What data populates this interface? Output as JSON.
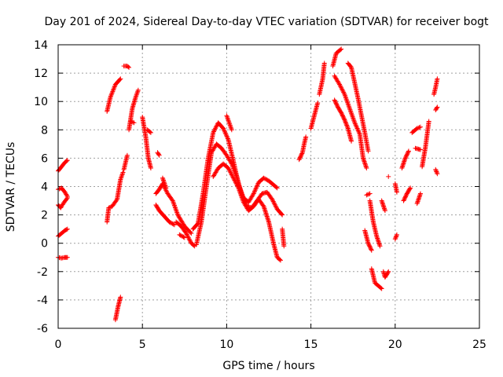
{
  "chart_data": {
    "type": "scatter",
    "title": "Day 201 of 2024, Sidereal Day-to-day VTEC variation (SDTVAR) for receiver bogt",
    "xlabel": "GPS time / hours",
    "ylabel": "SDTVAR / TECUs",
    "xlim": [
      0,
      25
    ],
    "ylim": [
      -6,
      14
    ],
    "x_ticks": [
      0,
      5,
      10,
      15,
      20,
      25
    ],
    "y_ticks": [
      -6,
      -4,
      -2,
      0,
      2,
      4,
      6,
      8,
      10,
      12,
      14
    ],
    "grid": true,
    "marker": "+",
    "color": "#ff0000",
    "series": [
      {
        "name": "s01",
        "points": [
          [
            0,
            5.1
          ],
          [
            0.2,
            5.4
          ],
          [
            0.4,
            5.7
          ],
          [
            0.55,
            5.85
          ]
        ]
      },
      {
        "name": "s02",
        "points": [
          [
            0,
            3.8
          ],
          [
            0.2,
            3.9
          ],
          [
            0.4,
            3.6
          ],
          [
            0.55,
            3.3
          ]
        ]
      },
      {
        "name": "s03",
        "points": [
          [
            0,
            2.7
          ],
          [
            0.15,
            2.5
          ],
          [
            0.3,
            2.8
          ],
          [
            0.55,
            3.2
          ]
        ]
      },
      {
        "name": "s04",
        "points": [
          [
            0,
            0.5
          ],
          [
            0.2,
            0.7
          ],
          [
            0.4,
            0.9
          ],
          [
            0.55,
            1.0
          ]
        ]
      },
      {
        "name": "s05",
        "points": [
          [
            0,
            -1.0
          ],
          [
            0.2,
            -1.05
          ],
          [
            0.4,
            -1.0
          ],
          [
            0.55,
            -1.0
          ]
        ]
      },
      {
        "name": "s06",
        "points": [
          [
            2.9,
            9.3
          ],
          [
            3.1,
            10.3
          ],
          [
            3.4,
            11.2
          ],
          [
            3.7,
            11.6
          ]
        ]
      },
      {
        "name": "s07",
        "points": [
          [
            2.9,
            1.5
          ],
          [
            3.0,
            2.5
          ],
          [
            3.2,
            2.6
          ],
          [
            3.5,
            3.1
          ],
          [
            3.7,
            4.5
          ],
          [
            3.85,
            5.0
          ]
        ]
      },
      {
        "name": "s08",
        "points": [
          [
            3.4,
            -5.4
          ],
          [
            3.55,
            -4.5
          ],
          [
            3.7,
            -3.8
          ]
        ]
      },
      {
        "name": "s09",
        "points": [
          [
            3.9,
            5.2
          ],
          [
            4.1,
            6.2
          ]
        ]
      },
      {
        "name": "s10",
        "points": [
          [
            3.9,
            12.5
          ],
          [
            4.1,
            12.5
          ],
          [
            4.2,
            12.4
          ]
        ]
      },
      {
        "name": "s11",
        "points": [
          [
            4.2,
            8.0
          ],
          [
            4.4,
            9.5
          ],
          [
            4.6,
            10.3
          ],
          [
            4.75,
            10.8
          ]
        ]
      },
      {
        "name": "s12",
        "points": [
          [
            4.3,
            8.6
          ],
          [
            4.5,
            8.5
          ]
        ]
      },
      {
        "name": "s13",
        "points": [
          [
            5.0,
            8.9
          ],
          [
            5.2,
            7.5
          ],
          [
            5.35,
            6.0
          ],
          [
            5.5,
            5.3
          ]
        ]
      },
      {
        "name": "s14",
        "points": [
          [
            5.3,
            8.0
          ],
          [
            5.5,
            7.8
          ]
        ]
      },
      {
        "name": "s15",
        "points": [
          [
            5.9,
            6.4
          ],
          [
            6.0,
            6.2
          ]
        ]
      },
      {
        "name": "s16",
        "points": [
          [
            5.8,
            3.5
          ],
          [
            6.0,
            3.8
          ],
          [
            6.2,
            4.2
          ],
          [
            6.5,
            3.5
          ],
          [
            6.8,
            3.0
          ],
          [
            7.1,
            2.0
          ],
          [
            7.5,
            1.2
          ],
          [
            7.9,
            0.7
          ]
        ]
      },
      {
        "name": "s17",
        "points": [
          [
            5.8,
            2.7
          ],
          [
            6.0,
            2.3
          ],
          [
            6.3,
            1.9
          ],
          [
            6.6,
            1.5
          ],
          [
            6.9,
            1.3
          ]
        ]
      },
      {
        "name": "s18",
        "points": [
          [
            6.2,
            4.6
          ],
          [
            6.4,
            3.9
          ]
        ]
      },
      {
        "name": "s19",
        "points": [
          [
            7.0,
            1.5
          ],
          [
            7.3,
            1.2
          ],
          [
            7.6,
            0.7
          ],
          [
            7.9,
            0.0
          ],
          [
            8.1,
            -0.2
          ]
        ]
      },
      {
        "name": "s20",
        "points": [
          [
            7.2,
            0.6
          ],
          [
            7.5,
            0.4
          ]
        ]
      },
      {
        "name": "s21",
        "points": [
          [
            8.0,
            1.0
          ],
          [
            8.3,
            1.4
          ],
          [
            8.6,
            3.5
          ],
          [
            8.9,
            6.0
          ],
          [
            9.2,
            7.8
          ],
          [
            9.5,
            8.5
          ],
          [
            9.8,
            8.1
          ],
          [
            10.1,
            7.3
          ],
          [
            10.4,
            5.8
          ],
          [
            10.7,
            4.2
          ],
          [
            11.0,
            3.2
          ],
          [
            11.3,
            2.9
          ],
          [
            11.6,
            3.5
          ],
          [
            11.9,
            4.3
          ],
          [
            12.2,
            4.6
          ],
          [
            12.5,
            4.4
          ],
          [
            12.8,
            4.1
          ],
          [
            13.0,
            3.9
          ]
        ]
      },
      {
        "name": "s22",
        "points": [
          [
            8.2,
            -0.1
          ],
          [
            8.5,
            1.5
          ],
          [
            8.8,
            4.0
          ],
          [
            9.1,
            6.4
          ],
          [
            9.4,
            7.0
          ],
          [
            9.7,
            6.7
          ],
          [
            10.0,
            6.2
          ],
          [
            10.3,
            5.6
          ],
          [
            10.6,
            4.7
          ],
          [
            10.9,
            3.4
          ],
          [
            11.2,
            2.6
          ],
          [
            11.5,
            2.5
          ],
          [
            11.8,
            3.0
          ],
          [
            12.1,
            3.5
          ],
          [
            12.4,
            3.6
          ],
          [
            12.7,
            3.1
          ],
          [
            13.0,
            2.4
          ],
          [
            13.3,
            2.0
          ]
        ]
      },
      {
        "name": "s23",
        "points": [
          [
            9.2,
            4.7
          ],
          [
            9.5,
            5.3
          ],
          [
            9.8,
            5.6
          ],
          [
            10.1,
            5.3
          ],
          [
            10.4,
            4.6
          ],
          [
            10.7,
            3.9
          ],
          [
            11.0,
            2.9
          ],
          [
            11.3,
            2.3
          ],
          [
            11.6,
            2.6
          ],
          [
            11.9,
            3.1
          ],
          [
            12.2,
            2.6
          ],
          [
            12.5,
            1.5
          ],
          [
            12.8,
            -0.1
          ],
          [
            13.0,
            -1.0
          ],
          [
            13.2,
            -1.2
          ]
        ]
      },
      {
        "name": "s24",
        "points": [
          [
            10.0,
            9.0
          ],
          [
            10.3,
            8.0
          ]
        ]
      },
      {
        "name": "s25",
        "points": [
          [
            13.3,
            1.0
          ],
          [
            13.4,
            -0.2
          ]
        ]
      },
      {
        "name": "s26",
        "points": [
          [
            14.3,
            5.9
          ],
          [
            14.5,
            6.4
          ],
          [
            14.6,
            7.0
          ],
          [
            14.7,
            7.5
          ]
        ]
      },
      {
        "name": "s27",
        "points": [
          [
            15.0,
            8.1
          ],
          [
            15.2,
            9.0
          ],
          [
            15.4,
            9.9
          ]
        ]
      },
      {
        "name": "s28",
        "points": [
          [
            15.5,
            10.5
          ],
          [
            15.7,
            11.6
          ],
          [
            15.8,
            12.7
          ]
        ]
      },
      {
        "name": "s29",
        "points": [
          [
            16.3,
            12.5
          ],
          [
            16.5,
            13.4
          ],
          [
            16.8,
            13.7
          ]
        ]
      },
      {
        "name": "s30",
        "points": [
          [
            16.4,
            11.8
          ],
          [
            16.7,
            11.2
          ],
          [
            17.0,
            10.5
          ],
          [
            17.3,
            9.5
          ],
          [
            17.6,
            8.5
          ],
          [
            17.9,
            7.7
          ],
          [
            18.1,
            6.0
          ],
          [
            18.3,
            5.3
          ]
        ]
      },
      {
        "name": "s31",
        "points": [
          [
            16.4,
            10.1
          ],
          [
            16.6,
            9.6
          ],
          [
            16.8,
            9.2
          ],
          [
            17.0,
            8.7
          ],
          [
            17.2,
            8.1
          ],
          [
            17.4,
            7.2
          ]
        ]
      },
      {
        "name": "s32",
        "points": [
          [
            17.2,
            12.7
          ],
          [
            17.4,
            12.4
          ],
          [
            17.6,
            11.3
          ],
          [
            17.8,
            10.2
          ],
          [
            18.0,
            9.0
          ],
          [
            18.2,
            7.8
          ],
          [
            18.4,
            6.5
          ]
        ]
      },
      {
        "name": "s33",
        "points": [
          [
            18.3,
            3.4
          ],
          [
            18.5,
            3.5
          ]
        ]
      },
      {
        "name": "s34",
        "points": [
          [
            18.2,
            0.9
          ],
          [
            18.4,
            0.0
          ],
          [
            18.6,
            -0.5
          ]
        ]
      },
      {
        "name": "s35",
        "points": [
          [
            18.5,
            3.0
          ],
          [
            18.7,
            1.5
          ],
          [
            18.9,
            0.5
          ],
          [
            19.1,
            -0.2
          ]
        ]
      },
      {
        "name": "s36",
        "points": [
          [
            18.6,
            -1.8
          ],
          [
            18.8,
            -2.8
          ],
          [
            19.0,
            -3.0
          ],
          [
            19.2,
            -3.2
          ]
        ]
      },
      {
        "name": "s37",
        "points": [
          [
            19.2,
            3.0
          ],
          [
            19.4,
            2.3
          ]
        ]
      },
      {
        "name": "s38",
        "points": [
          [
            19.3,
            -2.0
          ],
          [
            19.4,
            -2.4
          ],
          [
            19.6,
            -2.0
          ]
        ]
      },
      {
        "name": "s39",
        "points": [
          [
            19.6,
            4.7
          ]
        ]
      },
      {
        "name": "s40",
        "points": [
          [
            20.0,
            0.3
          ],
          [
            20.1,
            0.6
          ]
        ]
      },
      {
        "name": "s41",
        "points": [
          [
            20.0,
            4.2
          ],
          [
            20.1,
            3.6
          ]
        ]
      },
      {
        "name": "s42",
        "points": [
          [
            20.5,
            3.0
          ],
          [
            20.7,
            3.5
          ],
          [
            20.9,
            3.9
          ]
        ]
      },
      {
        "name": "s43",
        "points": [
          [
            20.4,
            5.3
          ],
          [
            20.6,
            6.0
          ],
          [
            20.8,
            6.5
          ]
        ]
      },
      {
        "name": "s44",
        "points": [
          [
            21.0,
            7.8
          ],
          [
            21.3,
            8.1
          ],
          [
            21.5,
            8.2
          ]
        ]
      },
      {
        "name": "s45",
        "points": [
          [
            21.2,
            6.7
          ],
          [
            21.5,
            6.6
          ]
        ]
      },
      {
        "name": "s46",
        "points": [
          [
            21.3,
            2.8
          ],
          [
            21.5,
            3.5
          ]
        ]
      },
      {
        "name": "s47",
        "points": [
          [
            21.6,
            5.4
          ],
          [
            21.8,
            6.8
          ],
          [
            22.0,
            8.6
          ]
        ]
      },
      {
        "name": "s48",
        "points": [
          [
            22.3,
            10.5
          ],
          [
            22.4,
            11.0
          ],
          [
            22.5,
            11.6
          ]
        ]
      },
      {
        "name": "s49",
        "points": [
          [
            22.4,
            9.4
          ],
          [
            22.5,
            9.6
          ]
        ]
      },
      {
        "name": "s50",
        "points": [
          [
            22.4,
            5.2
          ],
          [
            22.5,
            4.9
          ]
        ]
      }
    ]
  }
}
